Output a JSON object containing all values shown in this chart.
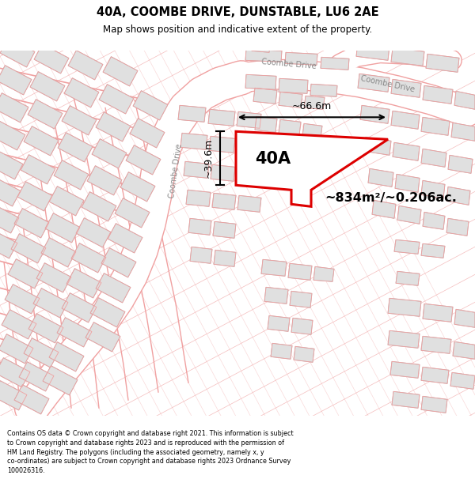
{
  "title": "40A, COOMBE DRIVE, DUNSTABLE, LU6 2AE",
  "subtitle": "Map shows position and indicative extent of the property.",
  "footer_line1": "Contains OS data © Crown copyright and database right 2021. This information is subject",
  "footer_line2": "to Crown copyright and database rights 2023 and is reproduced with the permission of",
  "footer_line3": "HM Land Registry. The polygons (including the associated geometry, namely x, y",
  "footer_line4": "co-ordinates) are subject to Crown copyright and database rights 2023 Ordnance Survey",
  "footer_line5": "100026316.",
  "map_bg": "#f5f5f5",
  "building_fill": "#e0e0e0",
  "building_edge": "#bbbbbb",
  "cadastral_color": "#f0a0a0",
  "road_fill": "#ffffff",
  "highlight_fill": "#ffffff",
  "highlight_edge": "#dd0000",
  "highlight_label": "40A",
  "area_text": "~834m²/~0.206ac.",
  "dim_width": "~66.6m",
  "dim_height": "~39.6m",
  "road_label": "Coombe Drive"
}
